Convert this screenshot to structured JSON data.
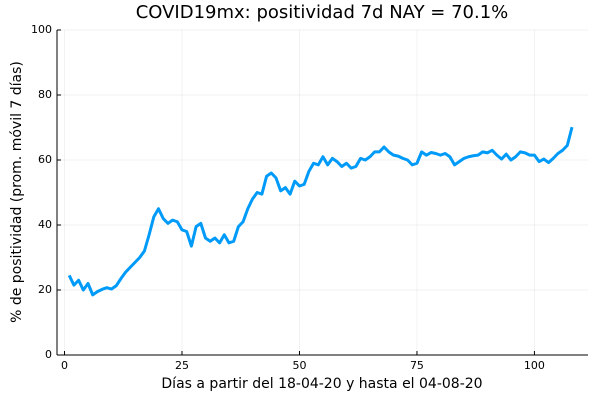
{
  "chart_data": {
    "type": "line",
    "title": "COVID19mx: positividad 7d NAY = 70.1%",
    "xlabel": "Días a partir del 18-04-20 y hasta el 04-08-20",
    "ylabel": "% de positividad (prom. móvil 7 días)",
    "x": [
      1,
      2,
      3,
      4,
      5,
      6,
      7,
      8,
      9,
      10,
      11,
      12,
      13,
      14,
      15,
      16,
      17,
      18,
      19,
      20,
      21,
      22,
      23,
      24,
      25,
      26,
      27,
      28,
      29,
      30,
      31,
      32,
      33,
      34,
      35,
      36,
      37,
      38,
      39,
      40,
      41,
      42,
      43,
      44,
      45,
      46,
      47,
      48,
      49,
      50,
      51,
      52,
      53,
      54,
      55,
      56,
      57,
      58,
      59,
      60,
      61,
      62,
      63,
      64,
      65,
      66,
      67,
      68,
      69,
      70,
      71,
      72,
      73,
      74,
      75,
      76,
      77,
      78,
      79,
      80,
      81,
      82,
      83,
      84,
      85,
      86,
      87,
      88,
      89,
      90,
      91,
      92,
      93,
      94,
      95,
      96,
      97,
      98,
      99,
      100,
      101,
      102,
      103,
      104,
      105,
      106,
      107,
      108
    ],
    "series": [
      {
        "color": "#009af9",
        "values": [
          24.5,
          21.5,
          23,
          20,
          22,
          18.5,
          19.5,
          20.2,
          20.7,
          20.3,
          21.3,
          23.5,
          25.5,
          27,
          28.5,
          30,
          32,
          37,
          42.5,
          45,
          42,
          40.5,
          41.5,
          41,
          38.5,
          38,
          33.5,
          39.5,
          40.5,
          36,
          35,
          36,
          34.5,
          37,
          34.5,
          35,
          39.5,
          41,
          45,
          48,
          50,
          49.5,
          55,
          56,
          54.5,
          50.5,
          51.5,
          49.5,
          53.5,
          52,
          52.5,
          56.5,
          59,
          58.5,
          61,
          58.5,
          60.5,
          59.5,
          58,
          59,
          57.5,
          58,
          60.5,
          60,
          61,
          62.5,
          62.5,
          64,
          62.5,
          61.5,
          61.2,
          60.5,
          60,
          58.5,
          59,
          62.5,
          61.5,
          62.3,
          62,
          61.5,
          62,
          61,
          58.5,
          59.5,
          60.5,
          61,
          61.3,
          61.5,
          62.5,
          62.2,
          63,
          61.5,
          60.3,
          61.8,
          60,
          61,
          62.5,
          62.2,
          61.5,
          61.5,
          59.5,
          60.3,
          59.2,
          60.5,
          62,
          63,
          64.5,
          70.1
        ]
      }
    ],
    "xlim": [
      -1.6,
      111.4
    ],
    "xticks": [
      0,
      25,
      50,
      75,
      100
    ],
    "ylim": [
      0,
      100
    ],
    "yticks": [
      0,
      20,
      40,
      60,
      80,
      100
    ],
    "grid": true
  }
}
